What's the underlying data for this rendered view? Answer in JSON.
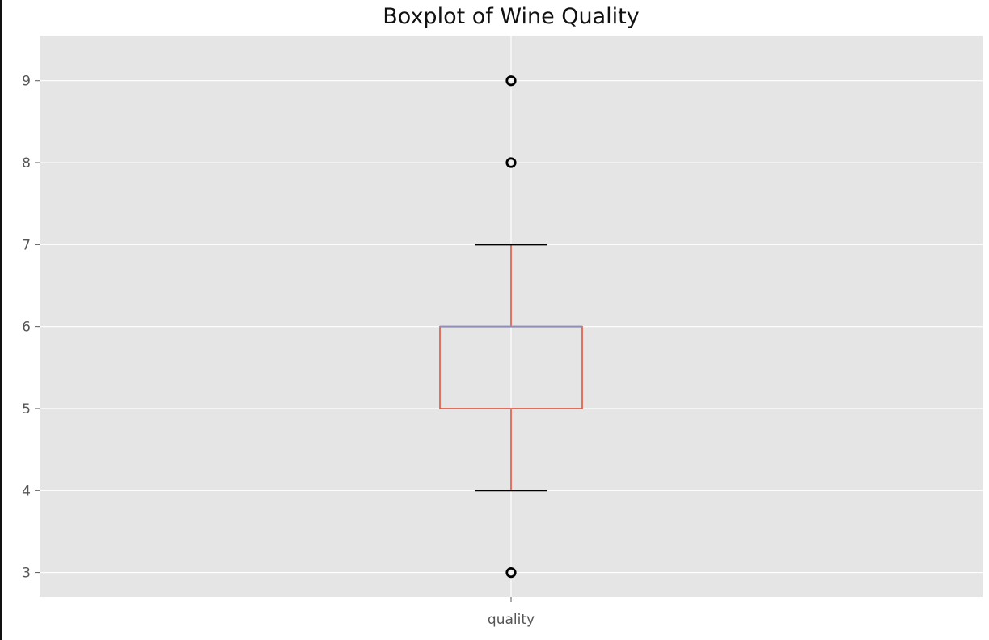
{
  "chart_data": {
    "type": "boxplot",
    "title": "Boxplot of Wine Quality",
    "xlabel": "",
    "ylabel": "",
    "categories": [
      "quality"
    ],
    "ylim": [
      2.7,
      9.55
    ],
    "yticks": [
      3,
      4,
      5,
      6,
      7,
      8,
      9
    ],
    "grid": true,
    "boxes": [
      {
        "category": "quality",
        "whisker_low": 4,
        "q1": 5,
        "median": 6,
        "q3": 6,
        "whisker_high": 7,
        "outliers": [
          3,
          8,
          9
        ]
      }
    ]
  },
  "colors": {
    "plot_background": "#e5e5e5",
    "grid": "#ffffff",
    "box": "#e24a33",
    "median": "#8c8cc8",
    "whisker_cap": "#000000",
    "outlier": "#000000",
    "tick_label": "#555555",
    "title": "#111111"
  }
}
